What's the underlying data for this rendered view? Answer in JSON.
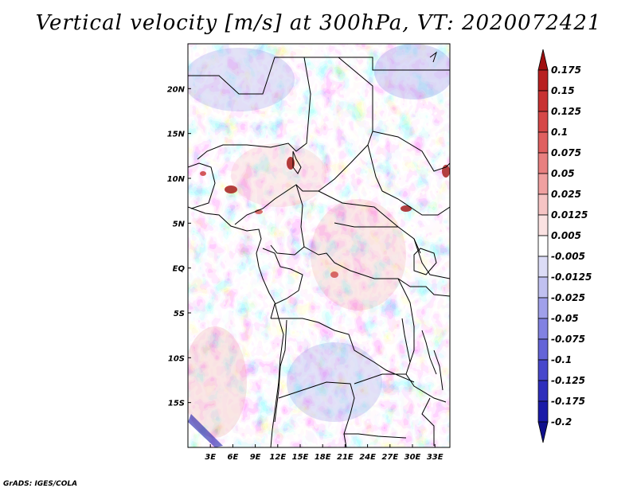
{
  "title": "Vertical velocity [m/s] at 300hPa, VT: 2020072421",
  "credit": "GrADS: IGES/COLA",
  "map": {
    "lon_range": [
      0,
      35
    ],
    "lat_range": [
      -20,
      25
    ],
    "lon_ticks": [
      "3E",
      "6E",
      "9E",
      "12E",
      "15E",
      "18E",
      "21E",
      "24E",
      "27E",
      "30E",
      "33E"
    ],
    "lat_ticks": [
      "20N",
      "15N",
      "10N",
      "5N",
      "EQ",
      "5S",
      "10S",
      "15S"
    ]
  },
  "colorbar": {
    "labels": [
      "0.175",
      "0.15",
      "0.125",
      "0.1",
      "0.075",
      "0.05",
      "0.025",
      "0.0125",
      "0.005",
      "-0.005",
      "-0.0125",
      "-0.025",
      "-0.05",
      "-0.075",
      "-0.1",
      "-0.125",
      "-0.175",
      "-0.2"
    ],
    "colors": [
      "#a01010",
      "#b82020",
      "#c83232",
      "#d64848",
      "#e06060",
      "#e88080",
      "#f0a0a0",
      "#f6c4c4",
      "#fbe2e2",
      "#ffffff",
      "#dcdcf6",
      "#c0c0f0",
      "#a0a0ea",
      "#8282e2",
      "#6464d8",
      "#4848cc",
      "#2e2ebc",
      "#1a1aa8",
      "#10108c"
    ]
  }
}
